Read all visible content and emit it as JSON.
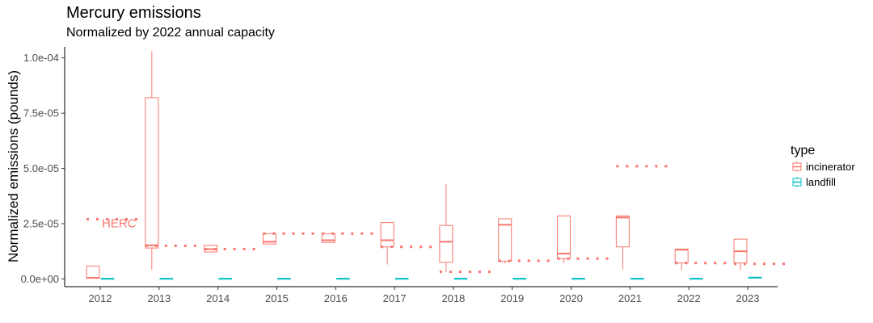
{
  "chart_data": {
    "type": "box",
    "title": "Mercury emissions",
    "subtitle": "Normalized by 2022 annual capacity",
    "xlabel": "",
    "ylabel": "Normalized emissions (pounds)",
    "ylim": [
      -3.5e-06,
      0.000105
    ],
    "yticks": [
      0,
      2.5e-05,
      5e-05,
      7.5e-05,
      0.0001
    ],
    "yticklabels": [
      "0.0e+00",
      "2.5e-05",
      "5.0e-05",
      "7.5e-05",
      "1.0e-04"
    ],
    "categories": [
      "2012",
      "2013",
      "2014",
      "2015",
      "2016",
      "2017",
      "2018",
      "2019",
      "2020",
      "2021",
      "2022",
      "2023"
    ],
    "grid": false,
    "legend": {
      "title": "type",
      "position": "right",
      "entries": [
        {
          "name": "incinerator",
          "color": "#F8766D"
        },
        {
          "name": "landfill",
          "color": "#00BFC4"
        }
      ]
    },
    "series": [
      {
        "name": "incinerator",
        "color": "#F8766D",
        "boxes": [
          {
            "x": "2012",
            "min": 3e-07,
            "q1": 3e-07,
            "median": 5e-07,
            "q3": 5.8e-06,
            "max": 5.8e-06
          },
          {
            "x": "2013",
            "min": 4e-06,
            "q1": 1.4e-05,
            "median": 1.52e-05,
            "q3": 8.2e-05,
            "max": 0.000103
          },
          {
            "x": "2014",
            "min": 1.22e-05,
            "q1": 1.22e-05,
            "median": 1.35e-05,
            "q3": 1.52e-05,
            "max": 1.52e-05
          },
          {
            "x": "2015",
            "min": 1.58e-05,
            "q1": 1.58e-05,
            "median": 1.68e-05,
            "q3": 2.05e-05,
            "max": 2.05e-05
          },
          {
            "x": "2016",
            "min": 1.65e-05,
            "q1": 1.65e-05,
            "median": 1.75e-05,
            "q3": 2.05e-05,
            "max": 2.05e-05
          },
          {
            "x": "2017",
            "min": 6.5e-06,
            "q1": 1.45e-05,
            "median": 1.75e-05,
            "q3": 2.55e-05,
            "max": 2.55e-05
          },
          {
            "x": "2018",
            "min": 3e-06,
            "q1": 7.5e-06,
            "median": 1.68e-05,
            "q3": 2.42e-05,
            "max": 4.3e-05
          },
          {
            "x": "2019",
            "min": 7e-06,
            "q1": 8e-06,
            "median": 2.45e-05,
            "q3": 2.72e-05,
            "max": 2.72e-05
          },
          {
            "x": "2020",
            "min": 7e-06,
            "q1": 9.2e-06,
            "median": 1.15e-05,
            "q3": 2.85e-05,
            "max": 2.85e-05
          },
          {
            "x": "2021",
            "min": 4.2e-06,
            "q1": 1.45e-05,
            "median": 2.78e-05,
            "q3": 2.85e-05,
            "max": 2.85e-05
          },
          {
            "x": "2022",
            "min": 4e-06,
            "q1": 7.2e-06,
            "median": 1.32e-05,
            "q3": 1.35e-05,
            "max": 1.35e-05
          },
          {
            "x": "2023",
            "min": 4e-06,
            "q1": 7.2e-06,
            "median": 1.25e-05,
            "q3": 1.8e-05,
            "max": 1.8e-05
          }
        ]
      },
      {
        "name": "landfill",
        "color": "#00BFC4",
        "boxes": [
          {
            "x": "2012",
            "min": 1e-07,
            "q1": 1e-07,
            "median": 1e-07,
            "q3": 1e-07,
            "max": 1e-07
          },
          {
            "x": "2013",
            "min": 1e-07,
            "q1": 1e-07,
            "median": 1e-07,
            "q3": 1e-07,
            "max": 1e-07
          },
          {
            "x": "2014",
            "min": 1e-07,
            "q1": 1e-07,
            "median": 1e-07,
            "q3": 1e-07,
            "max": 1e-07
          },
          {
            "x": "2015",
            "min": 1e-07,
            "q1": 1e-07,
            "median": 1e-07,
            "q3": 1e-07,
            "max": 1e-07
          },
          {
            "x": "2016",
            "min": 1e-07,
            "q1": 1e-07,
            "median": 1e-07,
            "q3": 1e-07,
            "max": 1e-07
          },
          {
            "x": "2017",
            "min": 1e-07,
            "q1": 1e-07,
            "median": 1e-07,
            "q3": 1e-07,
            "max": 1e-07
          },
          {
            "x": "2018",
            "min": 1e-07,
            "q1": 1e-07,
            "median": 1e-07,
            "q3": 1e-07,
            "max": 1e-07
          },
          {
            "x": "2019",
            "min": 1e-07,
            "q1": 1e-07,
            "median": 1e-07,
            "q3": 1e-07,
            "max": 1e-07
          },
          {
            "x": "2020",
            "min": 1e-07,
            "q1": 1e-07,
            "median": 1e-07,
            "q3": 1e-07,
            "max": 1e-07
          },
          {
            "x": "2021",
            "min": 1e-07,
            "q1": 1e-07,
            "median": 1e-07,
            "q3": 1e-07,
            "max": 1e-07
          },
          {
            "x": "2022",
            "min": 1e-07,
            "q1": 1e-07,
            "median": 1e-07,
            "q3": 1e-07,
            "max": 1e-07
          },
          {
            "x": "2023",
            "min": 6e-07,
            "q1": 6e-07,
            "median": 6e-07,
            "q3": 6e-07,
            "max": 6e-07
          }
        ]
      }
    ],
    "reference_lines": {
      "label": "HERC",
      "color": "#F8766D",
      "style": "dotted",
      "values": [
        {
          "x": "2012",
          "y": 2.7e-05
        },
        {
          "x": "2013",
          "y": 1.5e-05
        },
        {
          "x": "2014",
          "y": 1.35e-05
        },
        {
          "x": "2015",
          "y": 2.05e-05
        },
        {
          "x": "2016",
          "y": 2.05e-05
        },
        {
          "x": "2017",
          "y": 1.45e-05
        },
        {
          "x": "2018",
          "y": 3.2e-06
        },
        {
          "x": "2019",
          "y": 8.2e-06
        },
        {
          "x": "2020",
          "y": 9.2e-06
        },
        {
          "x": "2021",
          "y": 5.1e-05
        },
        {
          "x": "2022",
          "y": 7.2e-06
        },
        {
          "x": "2023",
          "y": 6.8e-06
        }
      ]
    }
  }
}
